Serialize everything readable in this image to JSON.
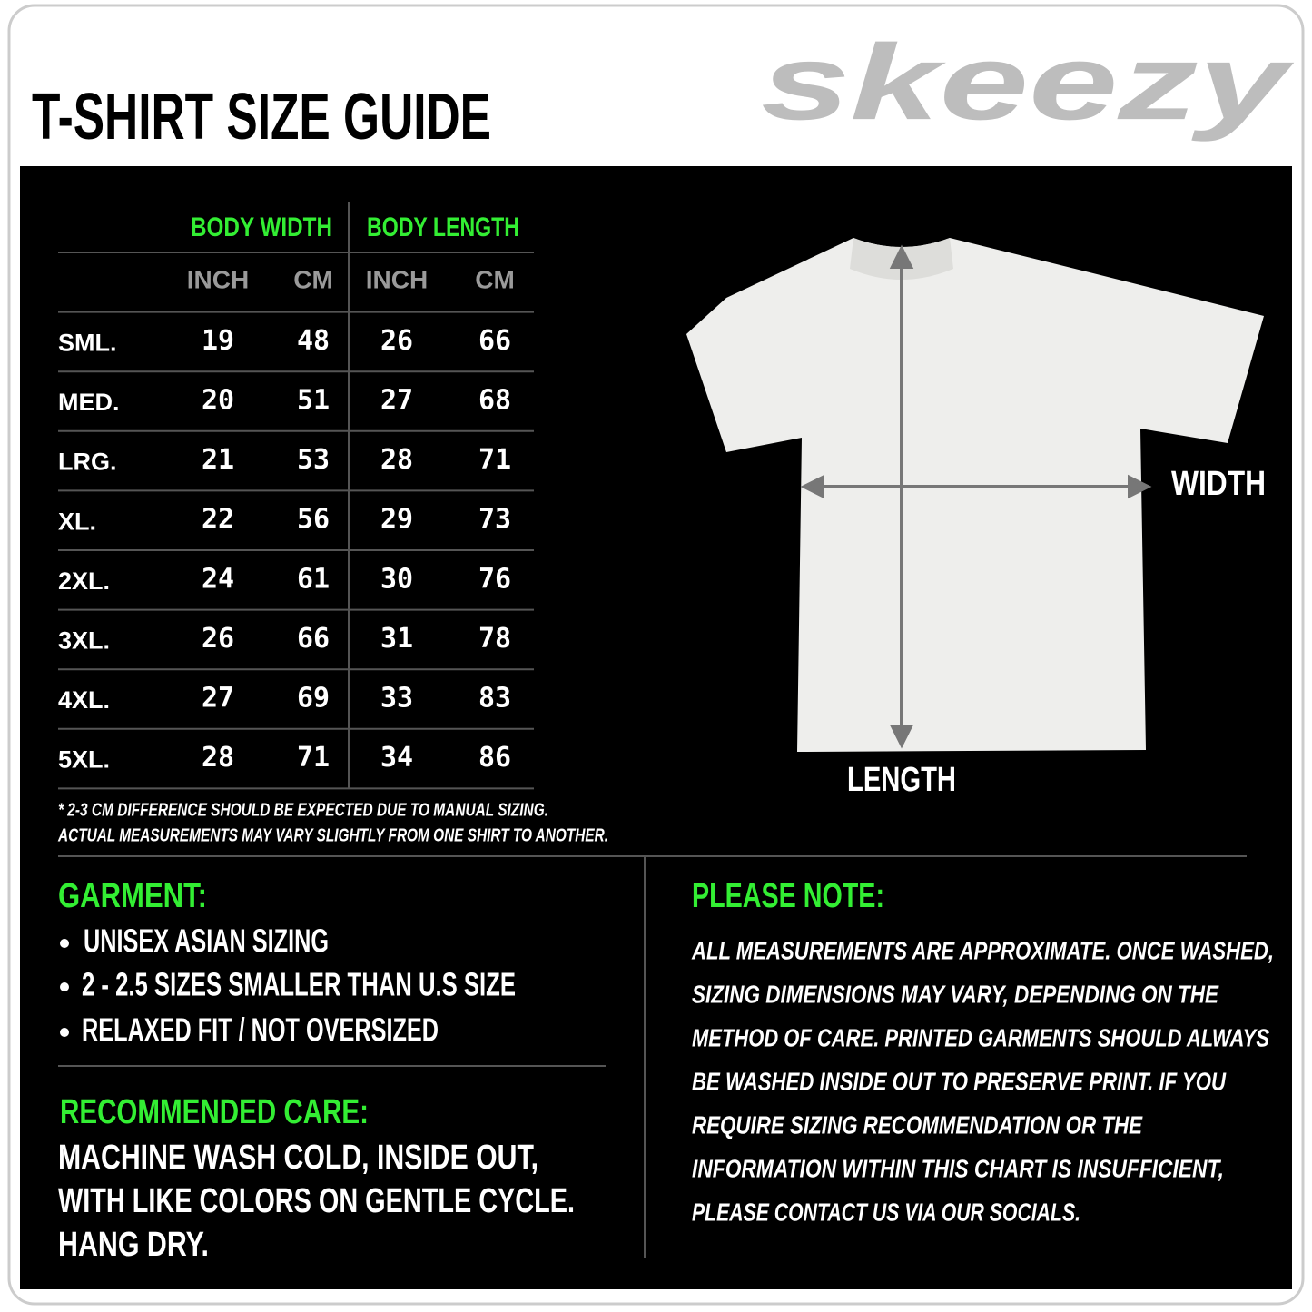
{
  "header": {
    "title": "T-SHIRT SIZE GUIDE",
    "logo": "skeezy"
  },
  "table": {
    "group_headers": [
      "BODY WIDTH",
      "BODY LENGTH"
    ],
    "unit_headers": [
      "INCH",
      "CM",
      "INCH",
      "CM"
    ],
    "rows": [
      [
        "SML.",
        19,
        48,
        26,
        66
      ],
      [
        "MED.",
        20,
        51,
        27,
        68
      ],
      [
        "LRG.",
        21,
        53,
        28,
        71
      ],
      [
        "XL.",
        22,
        56,
        29,
        73
      ],
      [
        "2XL.",
        24,
        61,
        30,
        76
      ],
      [
        "3XL.",
        26,
        66,
        31,
        78
      ],
      [
        "4XL.",
        27,
        69,
        33,
        83
      ],
      [
        "5XL.",
        28,
        71,
        34,
        86
      ]
    ],
    "footnote": [
      "* 2-3 CM DIFFERENCE SHOULD BE EXPECTED DUE TO MANUAL SIZING.",
      "ACTUAL MEASUREMENTS MAY VARY SLIGHTLY FROM ONE SHIRT TO ANOTHER."
    ]
  },
  "diagram": {
    "width_label": "WIDTH",
    "length_label": "LENGTH"
  },
  "garment": {
    "title": "GARMENT:",
    "items": [
      "UNISEX ASIAN SIZING",
      "2 - 2.5 SIZES SMALLER THAN U.S SIZE",
      "RELAXED FIT / NOT OVERSIZED"
    ]
  },
  "care": {
    "title": "RECOMMENDED CARE:",
    "lines": [
      "MACHINE WASH COLD, INSIDE OUT,",
      "WITH LIKE COLORS ON GENTLE CYCLE.",
      "HANG DRY."
    ]
  },
  "note": {
    "title": "PLEASE NOTE:",
    "lines": [
      "ALL MEASUREMENTS ARE APPROXIMATE. ONCE  WASHED,",
      "SIZING DIMENSIONS MAY VARY, DEPENDING ON THE",
      "METHOD OF CARE. PRINTED GARMENTS SHOULD ALWAYS",
      "BE WASHED INSIDE OUT TO PRESERVE PRINT.  IF YOU",
      "REQUIRE SIZING  RECOMMENDATION OR THE",
      "INFORMATION WITHIN THIS CHART IS INSUFFICIENT,",
      "PLEASE CONTACT US VIA OUR SOCIALS."
    ]
  }
}
